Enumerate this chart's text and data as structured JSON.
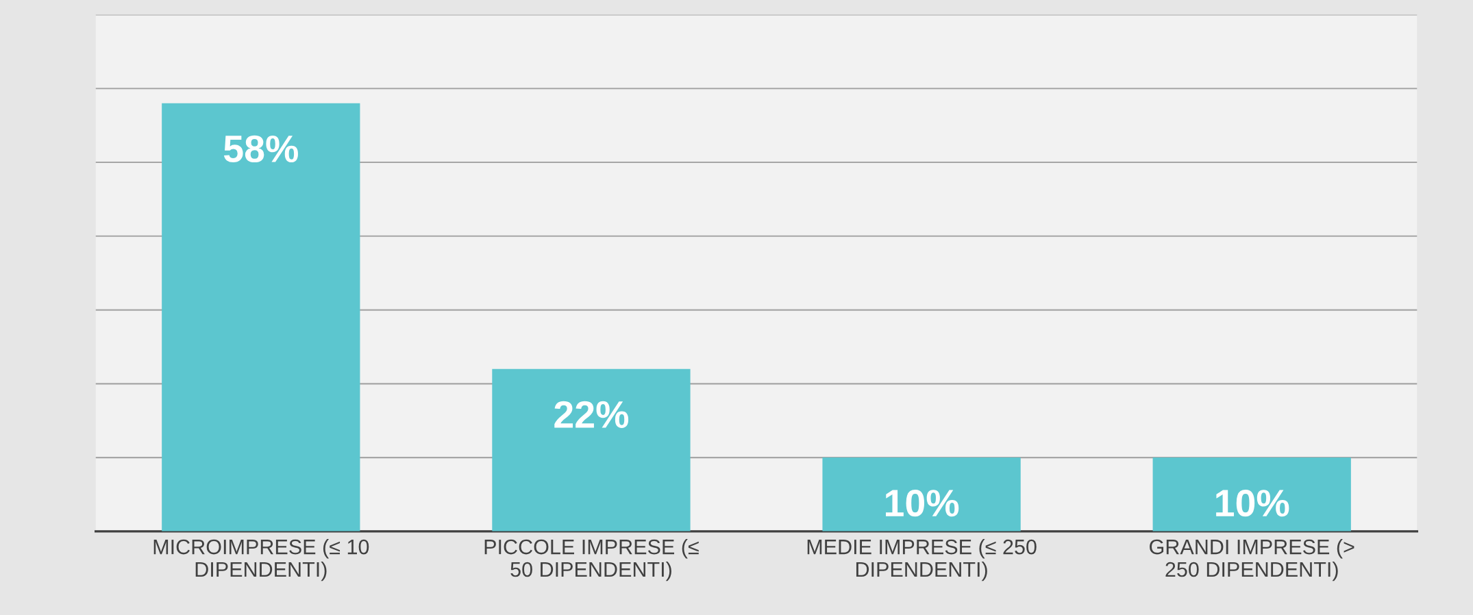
{
  "chart_data": {
    "type": "bar",
    "categories": [
      "MICROIMPRESE (≤ 10 DIPENDENTI)",
      "PICCOLE IMPRESE (≤ 50 DIPENDENTI)",
      "MEDIE IMPRESE (≤ 250 DIPENDENTI)",
      "GRANDI IMPRESE (> 250 DIPENDENTI)"
    ],
    "values": [
      58,
      22,
      10,
      10
    ],
    "color": "#5cc6cf",
    "value_labels": [
      "58%",
      "22%",
      "10%",
      "10%"
    ],
    "ylim": [
      0,
      70
    ],
    "yticks": [
      {
        "value": 0,
        "label": null
      },
      {
        "value": 10,
        "label": null
      },
      {
        "value": 20,
        "label": null
      },
      {
        "value": 30,
        "label": null
      },
      {
        "value": 40,
        "label": null
      },
      {
        "value": 50,
        "label": null
      },
      {
        "value": 60,
        "label": null
      },
      {
        "value": 70,
        "label": null
      }
    ],
    "grid": "y",
    "tick_labels": "x"
  }
}
